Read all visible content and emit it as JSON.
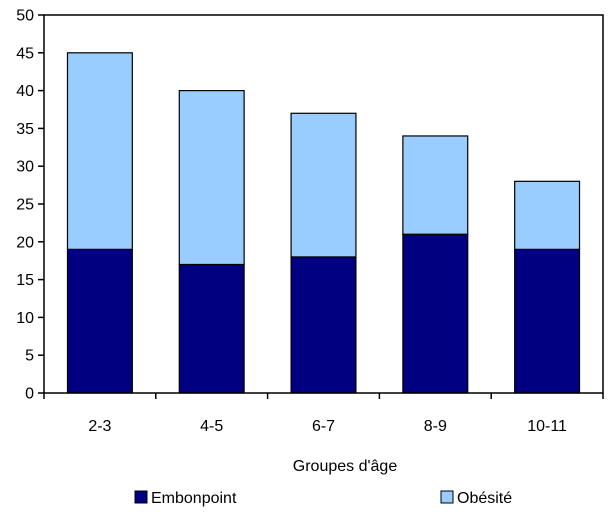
{
  "chart_data": {
    "type": "bar",
    "stacked": true,
    "categories": [
      "2-3",
      "4-5",
      "6-7",
      "8-9",
      "10-11"
    ],
    "series": [
      {
        "name": "Embonpoint",
        "values": [
          19,
          17,
          18,
          21,
          19
        ],
        "color": "#000080"
      },
      {
        "name": "Obésité",
        "values": [
          26,
          23,
          19,
          13,
          9
        ],
        "color": "#99ccff"
      }
    ],
    "xlabel": "Groupes d'âge",
    "ylabel": "",
    "ylim": [
      0,
      50
    ],
    "yticks": [
      "0",
      "5",
      "10",
      "15",
      "20",
      "25",
      "30",
      "35",
      "40",
      "45",
      "50"
    ],
    "grid": false,
    "legend_position": "bottom"
  }
}
